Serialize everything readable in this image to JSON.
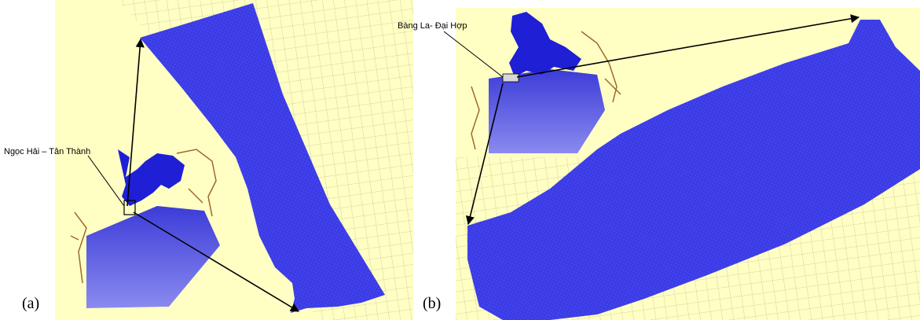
{
  "panels": [
    {
      "label": "(a)",
      "location": "Ngọc Hải – Tân Thành"
    },
    {
      "label": "(b)",
      "location": "Bàng La- Đại Hợp"
    }
  ]
}
